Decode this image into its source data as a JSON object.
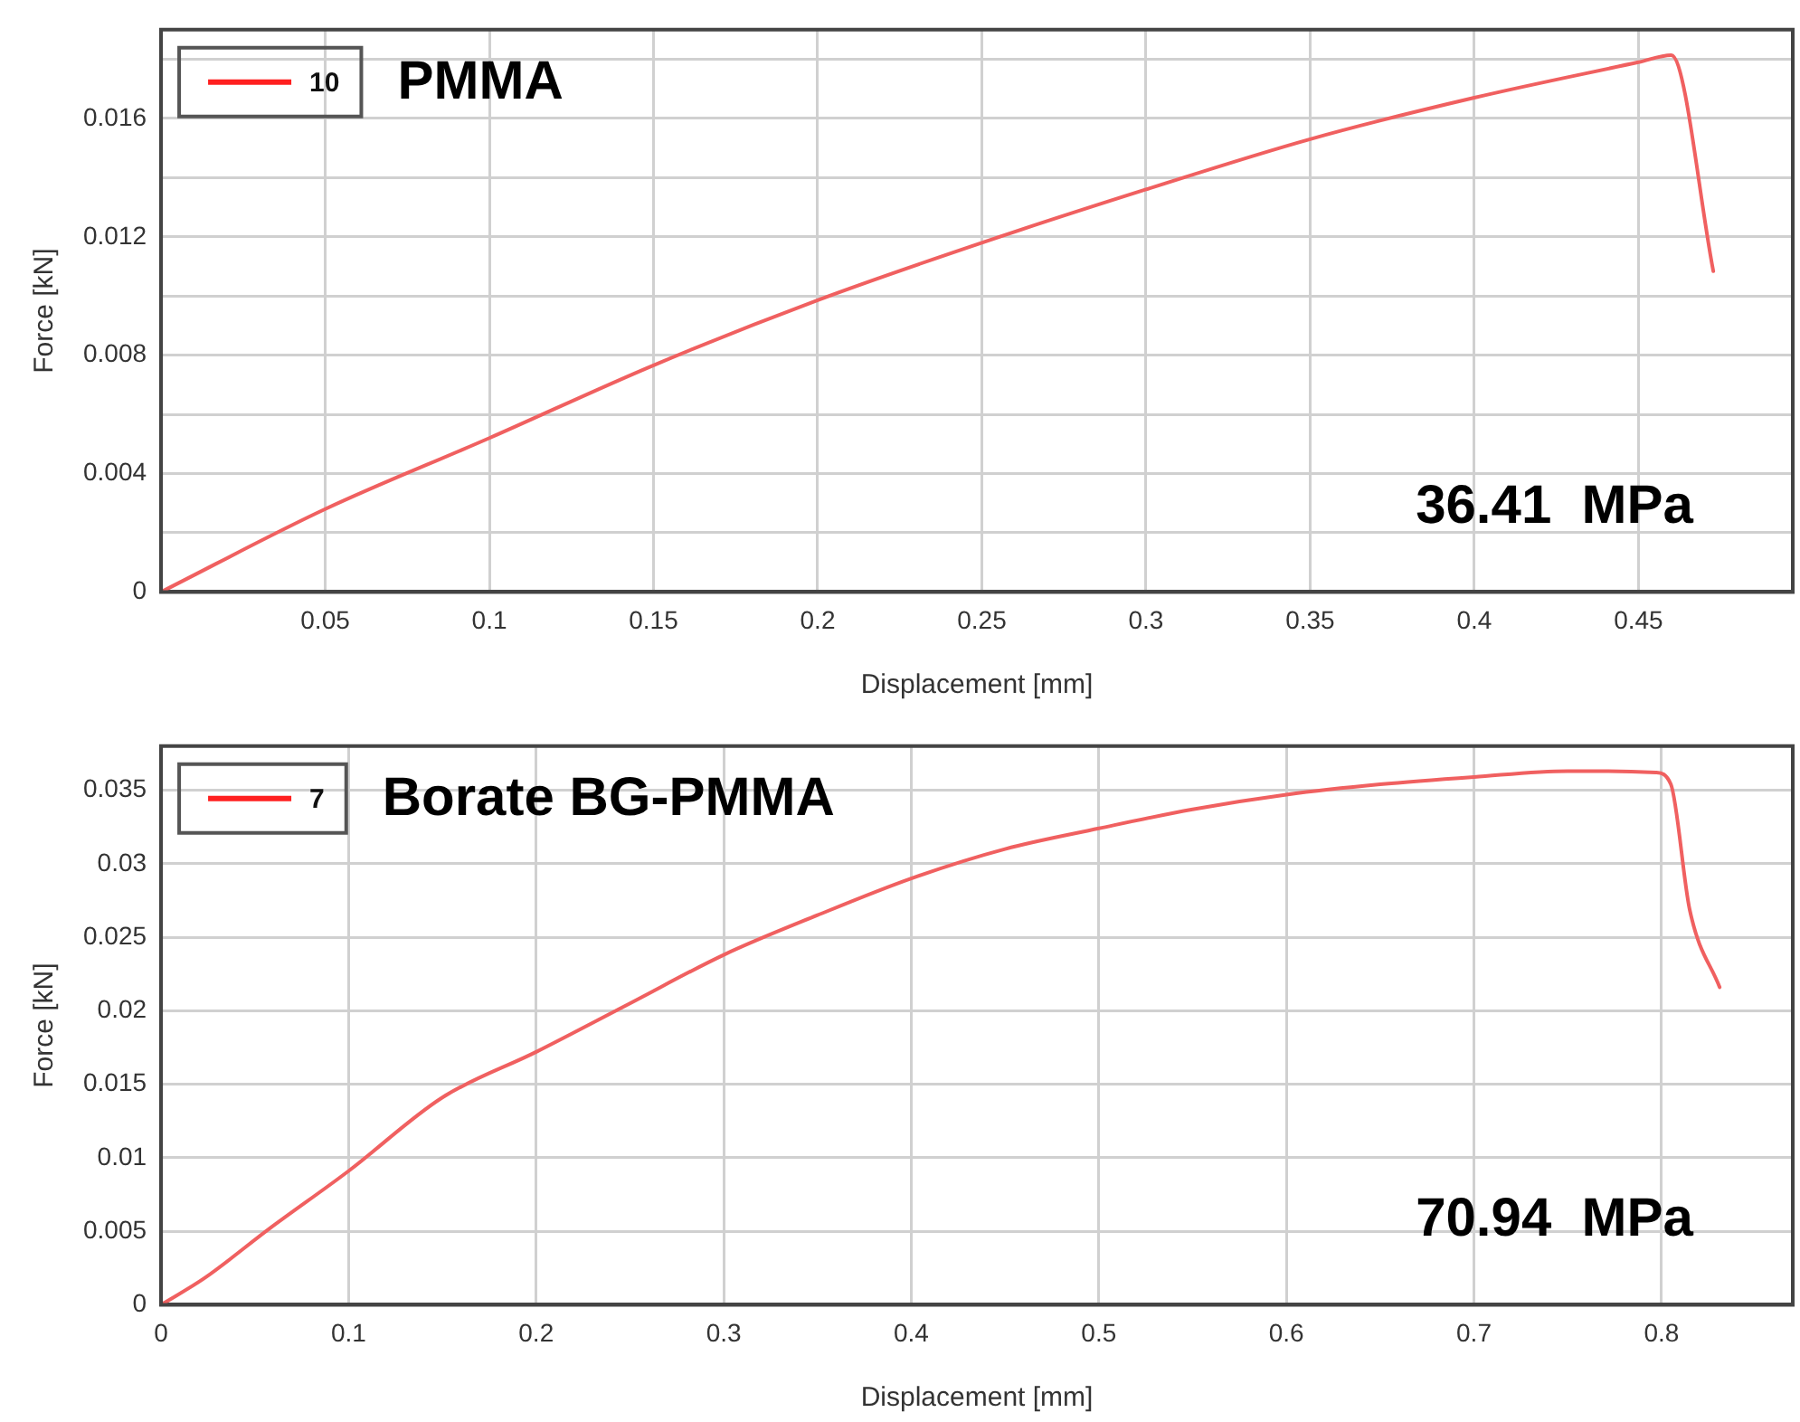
{
  "chart_data": [
    {
      "type": "line",
      "title": "PMMA",
      "xlabel": "Displacement [mm]",
      "ylabel": "Force [kN]",
      "annotations": [
        "36.41  MPa"
      ],
      "x": [
        0,
        0.05,
        0.1,
        0.15,
        0.2,
        0.25,
        0.3,
        0.35,
        0.4,
        0.45,
        0.46,
        0.4728
      ],
      "series": [
        {
          "name": "10",
          "color": "#f06060",
          "values": [
            0,
            0.0028,
            0.0052,
            0.00766,
            0.00986,
            0.0118,
            0.0136,
            0.0153,
            0.0167,
            0.0179,
            0.01814,
            0.01084
          ]
        }
      ],
      "xlim": [
        0,
        0.497
      ],
      "xticks": [
        0.05,
        0.1,
        0.15,
        0.2,
        0.25,
        0.3,
        0.35,
        0.4,
        0.45
      ],
      "ylim": [
        0,
        0.019
      ],
      "yticks": [
        0,
        {
          "value": 0.002,
          "label": null
        },
        0.004,
        {
          "value": 0.006,
          "label": null
        },
        0.008,
        {
          "value": 0.01,
          "label": null
        },
        0.012,
        {
          "value": 0.014,
          "label": null
        },
        0.016,
        {
          "value": 0.018,
          "label": null
        }
      ],
      "grid": true,
      "legend": "top left",
      "marker": "none",
      "line_style": "solid"
    },
    {
      "type": "line",
      "title": "Borate BG-PMMA",
      "xlabel": "Displacement [mm]",
      "ylabel": "Force [kN]",
      "annotations": [
        "70.94  MPa"
      ],
      "x": [
        0,
        0.023,
        0.058,
        0.1,
        0.15,
        0.2,
        0.25,
        0.3,
        0.35,
        0.4,
        0.45,
        0.5,
        0.55,
        0.6,
        0.65,
        0.7,
        0.75,
        0.771,
        0.797,
        0.805,
        0.815,
        0.831
      ],
      "series": [
        {
          "name": "7",
          "color": "#f06060",
          "values": [
            0,
            0.0018,
            0.0052,
            0.0091,
            0.0141,
            0.0172,
            0.0205,
            0.0238,
            0.0265,
            0.029,
            0.031,
            0.0324,
            0.0337,
            0.0347,
            0.0354,
            0.0359,
            0.0363,
            0.0363,
            0.0362,
            0.0354,
            0.0269,
            0.0216
          ]
        }
      ],
      "xlim": [
        0,
        0.87
      ],
      "xticks": [
        0,
        0.1,
        0.2,
        0.3,
        0.4,
        0.5,
        0.6,
        0.7,
        0.8
      ],
      "ylim": [
        0,
        0.038
      ],
      "yticks": [
        0,
        0.005,
        0.01,
        0.015,
        0.02,
        0.025,
        0.03,
        0.035
      ],
      "grid": true,
      "legend": "top left",
      "marker": "none",
      "line_style": "solid"
    }
  ]
}
